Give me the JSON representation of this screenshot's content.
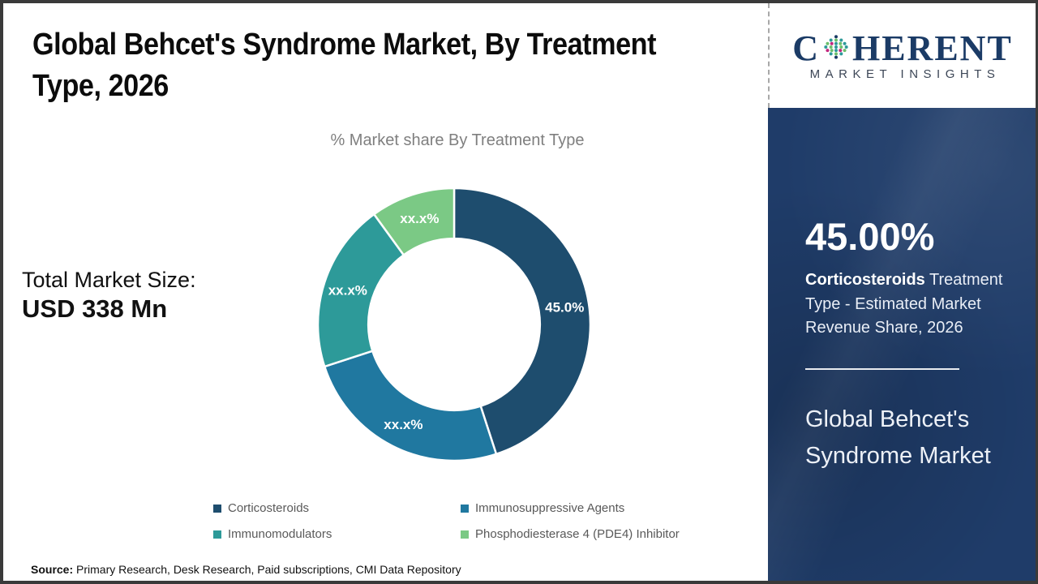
{
  "header": {
    "title_line1": "Global Behcet's Syndrome Market, By Treatment",
    "title_line2": "Type, 2026"
  },
  "main": {
    "market_size_label": "Total Market Size:",
    "market_size_value": "USD 338 Mn"
  },
  "chart_data": {
    "type": "pie",
    "subtype": "donut",
    "title": "% Market share By Treatment Type",
    "categories": [
      "Corticosteroids",
      "Immunosuppressive Agents",
      "Immunomodulators",
      "Phosphodiesterase 4 (PDE4) Inhibitor"
    ],
    "values": [
      45,
      25,
      20,
      10
    ],
    "slice_labels": [
      "45.0%",
      "xx.x%",
      "xx.x%",
      "xx.x%"
    ],
    "colors": [
      "#1e4d6e",
      "#2078a0",
      "#2d9a99",
      "#7bc985"
    ],
    "start_angle_deg": 0,
    "direction": "clockwise",
    "inner_radius_ratio": 0.63,
    "legend_position": "bottom",
    "slice_label_color": "#ffffff"
  },
  "sidebar": {
    "logo": {
      "prefix": "C",
      "suffix": "HERENT",
      "tagline": "MARKET INSIGHTS"
    },
    "stat_value": "45.00%",
    "stat_desc_bold": "Corticosteroids",
    "stat_desc_rest": " Treatment Type - Estimated Market Revenue Share, 2026",
    "panel_title": "Global Behcet's Syndrome Market",
    "panel_bg": "#1f3c69"
  },
  "footer": {
    "source_label": "Source:",
    "source_text": " Primary Research, Desk Research, Paid subscriptions, CMI Data Repository"
  }
}
